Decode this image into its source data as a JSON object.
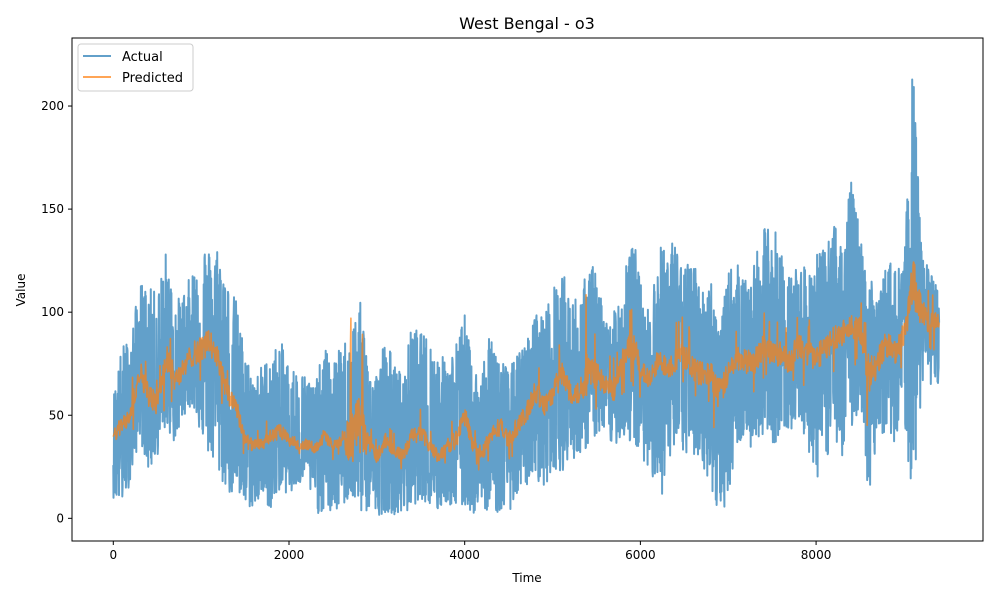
{
  "chart_data": {
    "type": "line",
    "title": "West Bengal - o3",
    "xlabel": "Time",
    "ylabel": "Value",
    "xlim": [
      -470,
      9900
    ],
    "ylim": [
      -11,
      233
    ],
    "xticks": [
      0,
      2000,
      4000,
      6000,
      8000
    ],
    "yticks": [
      0,
      50,
      100,
      150,
      200
    ],
    "grid": false,
    "legend_position": "top-left",
    "series": [
      {
        "name": "Actual",
        "color": "#1f77b4",
        "opacity": 0.7,
        "x": [
          0,
          100,
          200,
          300,
          400,
          500,
          600,
          700,
          800,
          900,
          1000,
          1100,
          1200,
          1300,
          1400,
          1500,
          1600,
          1700,
          1800,
          1900,
          2000,
          2100,
          2200,
          2300,
          2400,
          2500,
          2600,
          2700,
          2800,
          2900,
          3000,
          3100,
          3200,
          3300,
          3400,
          3500,
          3600,
          3700,
          3800,
          3900,
          4000,
          4100,
          4200,
          4300,
          4400,
          4500,
          4600,
          4700,
          4800,
          4900,
          5000,
          5100,
          5200,
          5300,
          5400,
          5500,
          5600,
          5700,
          5800,
          5900,
          6000,
          6100,
          6200,
          6300,
          6400,
          6500,
          6600,
          6700,
          6800,
          6900,
          7000,
          7100,
          7200,
          7300,
          7400,
          7500,
          7600,
          7700,
          7800,
          7900,
          8000,
          8100,
          8200,
          8300,
          8400,
          8500,
          8600,
          8700,
          8800,
          8900,
          9000,
          9100,
          9200,
          9300,
          9400
        ],
        "low": [
          10,
          6,
          18,
          40,
          22,
          30,
          45,
          35,
          50,
          55,
          40,
          28,
          20,
          12,
          10,
          5,
          5,
          10,
          3,
          15,
          10,
          15,
          20,
          2,
          3,
          2,
          5,
          10,
          2,
          3,
          1,
          3,
          2,
          1,
          5,
          10,
          5,
          3,
          8,
          2,
          5,
          2,
          5,
          3,
          2,
          3,
          10,
          15,
          22,
          12,
          25,
          22,
          30,
          28,
          35,
          40,
          38,
          35,
          40,
          35,
          30,
          25,
          8,
          15,
          35,
          30,
          30,
          28,
          12,
          0,
          10,
          35,
          40,
          28,
          42,
          30,
          45,
          40,
          50,
          35,
          18,
          25,
          40,
          30,
          42,
          55,
          10,
          30,
          45,
          35,
          50,
          5,
          60,
          65,
          65
        ],
        "high": [
          60,
          84,
          88,
          115,
          112,
          110,
          130,
          105,
          110,
          120,
          136,
          130,
          134,
          115,
          106,
          80,
          70,
          75,
          80,
          87,
          75,
          72,
          70,
          65,
          84,
          75,
          85,
          90,
          108,
          80,
          72,
          90,
          75,
          70,
          95,
          90,
          88,
          80,
          78,
          85,
          100,
          70,
          78,
          90,
          80,
          72,
          80,
          85,
          100,
          100,
          110,
          124,
          105,
          110,
          120,
          125,
          95,
          100,
          120,
          144,
          115,
          100,
          130,
          137,
          135,
          120,
          130,
          110,
          120,
          90,
          120,
          125,
          115,
          125,
          140,
          146,
          130,
          118,
          125,
          120,
          130,
          130,
          143,
          145,
          164,
          140,
          120,
          105,
          124,
          125,
          120,
          221,
          130,
          120,
          110
        ],
        "values": [
          38,
          45,
          52,
          72,
          60,
          55,
          78,
          68,
          72,
          80,
          82,
          86,
          76,
          60,
          55,
          38,
          35,
          36,
          40,
          42,
          38,
          36,
          36,
          34,
          40,
          35,
          38,
          38,
          45,
          38,
          30,
          38,
          33,
          30,
          40,
          42,
          35,
          30,
          35,
          38,
          50,
          35,
          32,
          40,
          45,
          38,
          45,
          50,
          62,
          55,
          60,
          70,
          62,
          60,
          72,
          70,
          64,
          62,
          76,
          85,
          74,
          66,
          76,
          74,
          76,
          80,
          72,
          70,
          70,
          60,
          70,
          78,
          76,
          76,
          84,
          80,
          80,
          76,
          84,
          80,
          78,
          82,
          88,
          90,
          92,
          92,
          70,
          76,
          85,
          80,
          90,
          115,
          100,
          95,
          95
        ]
      },
      {
        "name": "Predicted",
        "color": "#ff7f0e",
        "opacity": 0.7,
        "x": [
          0,
          100,
          200,
          300,
          400,
          500,
          600,
          700,
          800,
          900,
          1000,
          1100,
          1200,
          1300,
          1400,
          1500,
          1600,
          1700,
          1800,
          1900,
          2000,
          2100,
          2200,
          2300,
          2400,
          2500,
          2600,
          2700,
          2800,
          2900,
          3000,
          3100,
          3200,
          3300,
          3400,
          3500,
          3600,
          3700,
          3800,
          3900,
          4000,
          4100,
          4200,
          4300,
          4400,
          4500,
          4600,
          4700,
          4800,
          4900,
          5000,
          5100,
          5200,
          5300,
          5400,
          5500,
          5600,
          5700,
          5800,
          5900,
          6000,
          6100,
          6200,
          6300,
          6400,
          6500,
          6600,
          6700,
          6800,
          6900,
          7000,
          7100,
          7200,
          7300,
          7400,
          7500,
          7600,
          7700,
          7800,
          7900,
          8000,
          8100,
          8200,
          8300,
          8400,
          8500,
          8600,
          8700,
          8800,
          8900,
          9000,
          9100,
          9200,
          9300,
          9400
        ],
        "low": [
          30,
          32,
          38,
          55,
          45,
          40,
          55,
          52,
          58,
          62,
          65,
          68,
          58,
          45,
          40,
          28,
          28,
          30,
          30,
          32,
          30,
          30,
          30,
          28,
          30,
          28,
          30,
          28,
          32,
          28,
          22,
          28,
          25,
          22,
          28,
          30,
          28,
          22,
          25,
          25,
          35,
          25,
          22,
          28,
          30,
          28,
          32,
          35,
          45,
          40,
          45,
          52,
          45,
          45,
          52,
          52,
          50,
          48,
          58,
          65,
          58,
          52,
          60,
          58,
          60,
          62,
          56,
          54,
          52,
          30,
          55,
          62,
          60,
          60,
          66,
          62,
          64,
          60,
          66,
          62,
          60,
          65,
          70,
          72,
          72,
          75,
          30,
          58,
          68,
          65,
          72,
          85,
          82,
          78,
          80
        ],
        "high": [
          50,
          58,
          66,
          86,
          78,
          70,
          95,
          85,
          88,
          98,
          100,
          104,
          92,
          75,
          70,
          50,
          45,
          45,
          50,
          55,
          48,
          45,
          45,
          42,
          50,
          44,
          50,
          101,
          112,
          50,
          40,
          50,
          42,
          40,
          52,
          55,
          45,
          40,
          45,
          50,
          66,
          45,
          42,
          52,
          58,
          50,
          58,
          65,
          80,
          70,
          75,
          88,
          80,
          75,
          118,
          88,
          80,
          78,
          95,
          105,
          92,
          82,
          95,
          92,
          96,
          100,
          90,
          88,
          88,
          75,
          88,
          96,
          94,
          95,
          102,
          98,
          98,
          94,
          102,
          98,
          96,
          100,
          108,
          108,
          112,
          110,
          90,
          95,
          104,
          98,
          110,
          167,
          118,
          112,
          110
        ],
        "values": [
          40,
          45,
          52,
          72,
          60,
          55,
          78,
          68,
          72,
          80,
          82,
          86,
          76,
          60,
          55,
          38,
          35,
          36,
          40,
          42,
          38,
          36,
          36,
          34,
          40,
          35,
          38,
          38,
          45,
          38,
          30,
          38,
          33,
          30,
          40,
          42,
          35,
          30,
          35,
          38,
          50,
          35,
          32,
          40,
          45,
          38,
          45,
          50,
          62,
          55,
          60,
          70,
          62,
          60,
          72,
          70,
          64,
          62,
          76,
          85,
          74,
          66,
          76,
          74,
          76,
          80,
          72,
          70,
          70,
          60,
          70,
          78,
          76,
          76,
          84,
          80,
          80,
          76,
          84,
          80,
          78,
          82,
          88,
          90,
          92,
          92,
          70,
          76,
          85,
          80,
          90,
          115,
          100,
          95,
          95
        ]
      }
    ]
  }
}
